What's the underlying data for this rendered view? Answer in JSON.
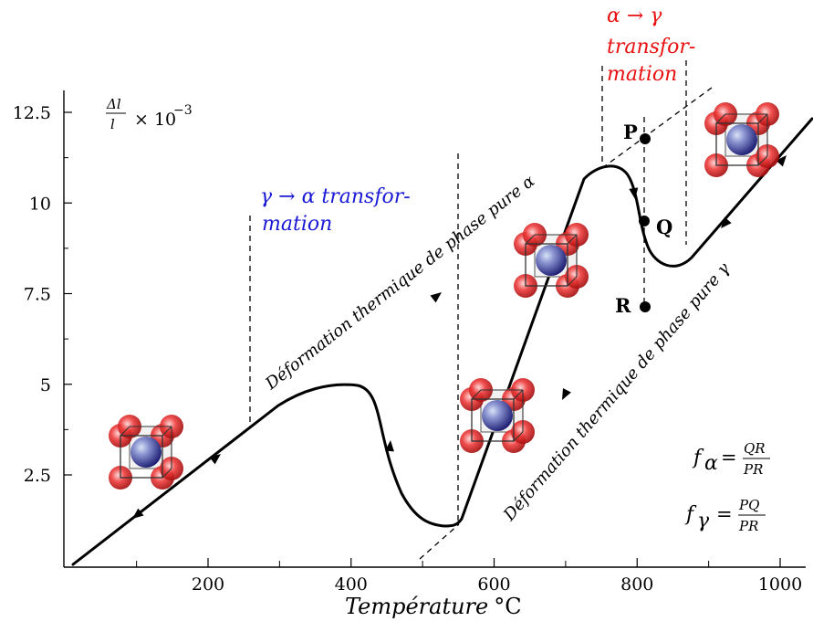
{
  "chart_data": {
    "type": "line",
    "xlabel": "Température °C",
    "xlabel_italic": "Température",
    "xlabel_unit": "°C",
    "ylabel": "Δl/l × 10⁻³",
    "ylabel_parts": {
      "num": "Δl",
      "den": "l",
      "times": "× 10",
      "exp": "−3"
    },
    "x_ticks": [
      "200",
      "400",
      "600",
      "800",
      "1000"
    ],
    "y_ticks": [
      "2.5",
      "5",
      "7.5",
      "10",
      "12.5"
    ],
    "xlim": [
      0,
      1050
    ],
    "ylim": [
      0,
      13
    ],
    "series": [
      {
        "values_x": [
          10,
          270,
          400,
          460,
          530,
          555,
          720,
          760,
          790,
          808,
          830,
          870,
          1050
        ],
        "values_y": [
          0.0,
          4.0,
          5.0,
          3.5,
          1.0,
          1.2,
          10.5,
          11.0,
          10.5,
          9.2,
          8.6,
          8.6,
          12.5
        ]
      }
    ],
    "annotations": {
      "alpha_to_gamma": [
        "α → γ",
        "transfor-",
        "mation"
      ],
      "gamma_to_alpha": [
        "γ → α transfor-",
        "mation"
      ],
      "pure_alpha": "Déformation thermique de phase pure α",
      "pure_gamma": "Déformation thermique de phase pure γ",
      "points": [
        "P",
        "Q",
        "R"
      ],
      "f_alpha": {
        "lhs": "f",
        "sub": "α",
        "num": "QR",
        "den": "PR"
      },
      "f_gamma": {
        "lhs": "f",
        "sub": "γ",
        "num": "PQ",
        "den": "PR"
      }
    },
    "grid": false
  },
  "colors": {
    "gamma_to_alpha": "#1a1ad6",
    "alpha_to_gamma": "#e81010",
    "atom_red": "#e01818",
    "atom_blue": "#3a3aa0"
  }
}
